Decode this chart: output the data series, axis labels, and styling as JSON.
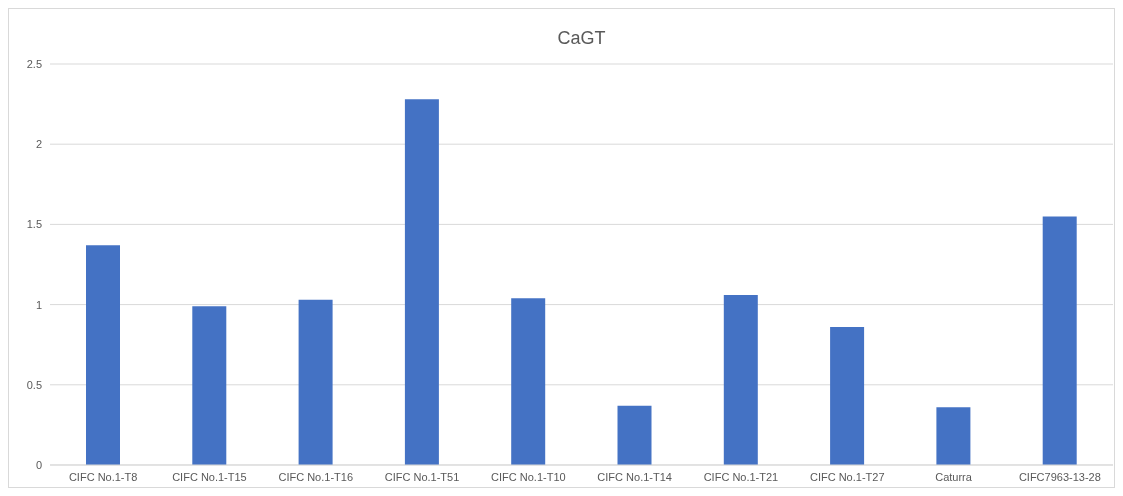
{
  "chart_data": {
    "type": "bar",
    "title": "CaGT",
    "categories": [
      "CIFC No.1-T8",
      "CIFC No.1-T15",
      "CIFC No.1-T16",
      "CIFC No.1-T51",
      "CIFC No.1-T10",
      "CIFC No.1-T14",
      "CIFC No.1-T21",
      "CIFC No.1-T27",
      "Caturra",
      "CIFC7963-13-28"
    ],
    "values": [
      1.37,
      0.99,
      1.03,
      2.28,
      1.04,
      0.37,
      1.06,
      0.86,
      0.36,
      1.55
    ],
    "color": "#4472c4",
    "ylim": [
      0,
      2.5
    ],
    "yticks": [
      0,
      0.5,
      1,
      1.5,
      2,
      2.5
    ],
    "grid": "y"
  }
}
